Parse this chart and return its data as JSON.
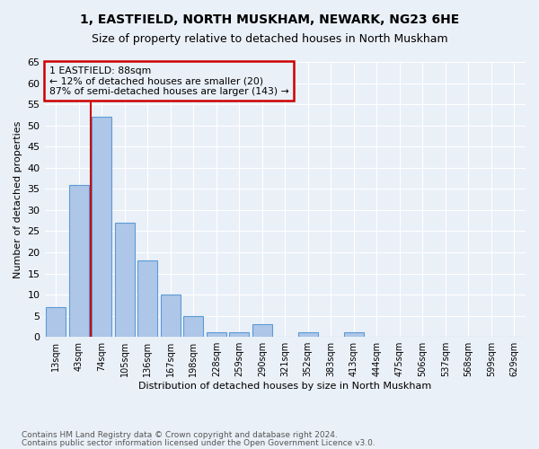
{
  "title1": "1, EASTFIELD, NORTH MUSKHAM, NEWARK, NG23 6HE",
  "title2": "Size of property relative to detached houses in North Muskham",
  "xlabel": "Distribution of detached houses by size in North Muskham",
  "ylabel": "Number of detached properties",
  "bin_labels": [
    "13sqm",
    "43sqm",
    "74sqm",
    "105sqm",
    "136sqm",
    "167sqm",
    "198sqm",
    "228sqm",
    "259sqm",
    "290sqm",
    "321sqm",
    "352sqm",
    "383sqm",
    "413sqm",
    "444sqm",
    "475sqm",
    "506sqm",
    "537sqm",
    "568sqm",
    "599sqm",
    "629sqm"
  ],
  "bar_values": [
    7,
    36,
    52,
    27,
    18,
    10,
    5,
    1,
    1,
    3,
    0,
    1,
    0,
    1,
    0,
    0,
    0,
    0,
    0,
    0,
    0
  ],
  "bar_color": "#aec6e8",
  "bar_edge_color": "#5b9bd5",
  "vline_color": "#cc0000",
  "vline_pos": 1.5,
  "ylim": [
    0,
    65
  ],
  "yticks": [
    0,
    5,
    10,
    15,
    20,
    25,
    30,
    35,
    40,
    45,
    50,
    55,
    60,
    65
  ],
  "annotation_line1": "1 EASTFIELD: 88sqm",
  "annotation_line2": "← 12% of detached houses are smaller (20)",
  "annotation_line3": "87% of semi-detached houses are larger (143) →",
  "annotation_box_color": "#cc0000",
  "footnote1": "Contains HM Land Registry data © Crown copyright and database right 2024.",
  "footnote2": "Contains public sector information licensed under the Open Government Licence v3.0.",
  "background_color": "#eaf0f8",
  "grid_color": "#ffffff"
}
